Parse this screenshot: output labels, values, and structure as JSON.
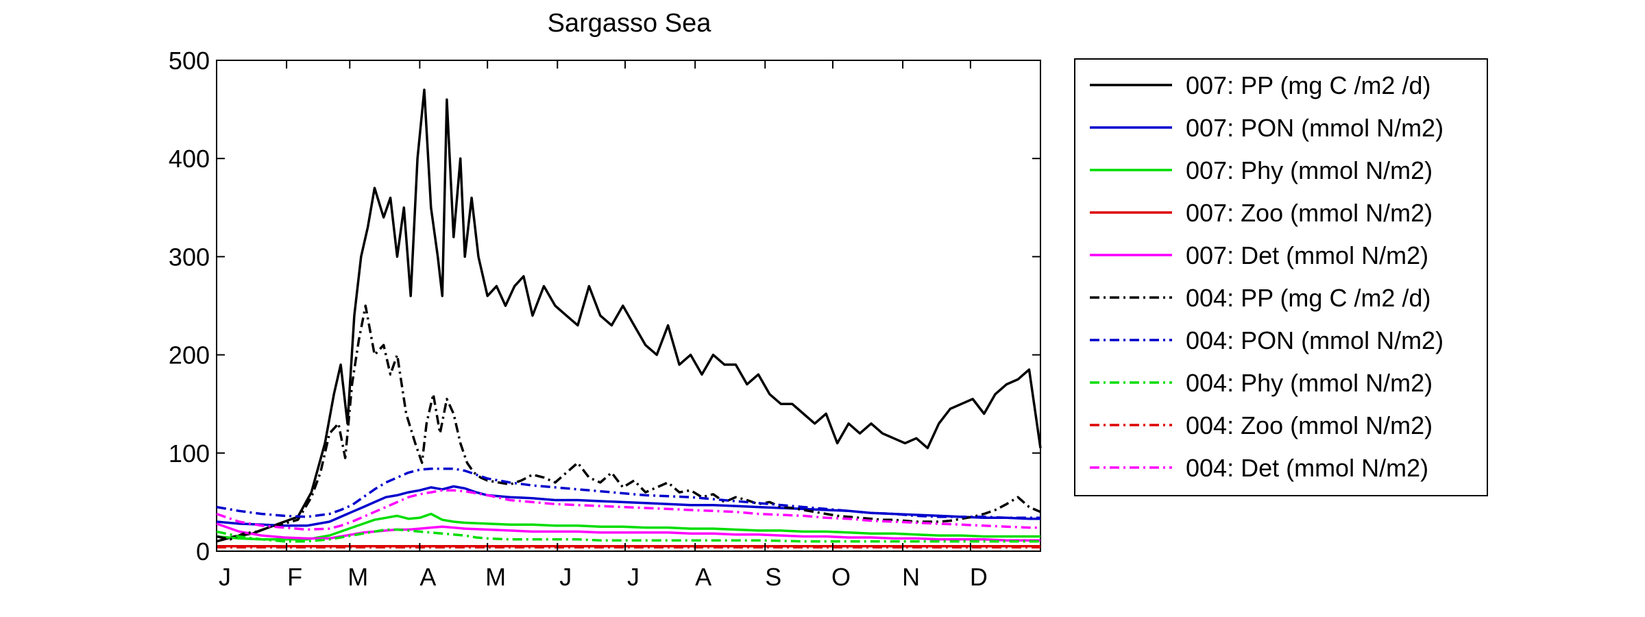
{
  "chart_data": {
    "type": "line",
    "title": "Sargasso Sea",
    "xlabel": "",
    "ylabel": "",
    "xlim": [
      0,
      365
    ],
    "ylim": [
      0,
      500
    ],
    "x_ticks": [
      {
        "day": 0,
        "label": "J"
      },
      {
        "day": 31,
        "label": "F"
      },
      {
        "day": 59,
        "label": "M"
      },
      {
        "day": 90,
        "label": "A"
      },
      {
        "day": 120,
        "label": "M"
      },
      {
        "day": 151,
        "label": "J"
      },
      {
        "day": 181,
        "label": "J"
      },
      {
        "day": 212,
        "label": "A"
      },
      {
        "day": 243,
        "label": "S"
      },
      {
        "day": 273,
        "label": "O"
      },
      {
        "day": 304,
        "label": "N"
      },
      {
        "day": 334,
        "label": "D"
      }
    ],
    "y_ticks": [
      0,
      100,
      200,
      300,
      400,
      500
    ],
    "grid": false,
    "legend_position": "outside-right",
    "series": [
      {
        "name": "007: PP (mg C /m2 /d)",
        "color": "#000000",
        "dash": "solid",
        "x": [
          0,
          8,
          16,
          24,
          30,
          36,
          42,
          48,
          52,
          55,
          58,
          61,
          64,
          67,
          70,
          74,
          77,
          80,
          83,
          86,
          89,
          92,
          95,
          98,
          100,
          102,
          105,
          108,
          110,
          113,
          116,
          120,
          124,
          128,
          132,
          136,
          140,
          145,
          150,
          155,
          160,
          165,
          170,
          175,
          180,
          185,
          190,
          195,
          200,
          205,
          210,
          215,
          220,
          225,
          230,
          235,
          240,
          245,
          250,
          255,
          260,
          265,
          270,
          275,
          280,
          285,
          290,
          295,
          300,
          305,
          310,
          315,
          320,
          325,
          330,
          335,
          340,
          345,
          350,
          355,
          360,
          365
        ],
        "y": [
          10,
          15,
          18,
          25,
          30,
          35,
          60,
          110,
          160,
          190,
          130,
          240,
          300,
          330,
          370,
          340,
          360,
          300,
          350,
          260,
          400,
          470,
          350,
          300,
          260,
          460,
          320,
          400,
          300,
          360,
          300,
          260,
          270,
          250,
          270,
          280,
          240,
          270,
          250,
          240,
          230,
          270,
          240,
          230,
          250,
          230,
          210,
          200,
          230,
          190,
          200,
          180,
          200,
          190,
          190,
          170,
          180,
          160,
          150,
          150,
          140,
          130,
          140,
          110,
          130,
          120,
          130,
          120,
          115,
          110,
          115,
          105,
          130,
          145,
          150,
          155,
          140,
          160,
          170,
          175,
          185,
          105
        ]
      },
      {
        "name": "007: PON (mmol N/m2)",
        "color": "#0000cc",
        "dash": "solid",
        "x": [
          0,
          10,
          20,
          30,
          40,
          50,
          55,
          60,
          65,
          70,
          75,
          80,
          85,
          90,
          95,
          100,
          105,
          110,
          115,
          120,
          130,
          140,
          150,
          160,
          170,
          180,
          190,
          200,
          210,
          220,
          230,
          240,
          250,
          260,
          270,
          280,
          290,
          300,
          310,
          320,
          330,
          340,
          350,
          360,
          365
        ],
        "y": [
          30,
          28,
          27,
          26,
          26,
          30,
          35,
          40,
          45,
          50,
          55,
          57,
          60,
          62,
          65,
          63,
          66,
          64,
          60,
          57,
          55,
          54,
          52,
          52,
          51,
          50,
          49,
          48,
          47,
          47,
          46,
          45,
          44,
          43,
          42,
          41,
          39,
          38,
          37,
          36,
          35,
          34,
          34,
          33,
          33
        ]
      },
      {
        "name": "007: Phy (mmol N/m2)",
        "color": "#00dd00",
        "dash": "solid",
        "x": [
          0,
          10,
          20,
          30,
          40,
          50,
          55,
          60,
          65,
          70,
          75,
          80,
          85,
          90,
          95,
          100,
          105,
          110,
          120,
          130,
          140,
          150,
          160,
          170,
          180,
          190,
          200,
          210,
          220,
          230,
          240,
          250,
          260,
          270,
          280,
          290,
          300,
          310,
          320,
          330,
          340,
          350,
          360,
          365
        ],
        "y": [
          15,
          13,
          12,
          12,
          12,
          16,
          20,
          24,
          28,
          32,
          34,
          36,
          33,
          34,
          38,
          32,
          30,
          29,
          28,
          27,
          27,
          26,
          26,
          25,
          25,
          24,
          24,
          23,
          23,
          22,
          21,
          21,
          20,
          20,
          19,
          18,
          18,
          17,
          16,
          16,
          15,
          15,
          15,
          15
        ]
      },
      {
        "name": "007: Zoo (mmol N/m2)",
        "color": "#dd0000",
        "dash": "solid",
        "x": [
          0,
          60,
          120,
          180,
          240,
          300,
          365
        ],
        "y": [
          5,
          5,
          5,
          5,
          5,
          5,
          5
        ]
      },
      {
        "name": "007: Det (mmol N/m2)",
        "color": "#ff00ff",
        "dash": "solid",
        "x": [
          0,
          10,
          20,
          30,
          40,
          50,
          55,
          60,
          65,
          70,
          75,
          80,
          85,
          90,
          95,
          100,
          105,
          110,
          120,
          130,
          140,
          150,
          160,
          170,
          180,
          190,
          200,
          210,
          220,
          230,
          240,
          250,
          260,
          270,
          280,
          290,
          300,
          310,
          320,
          330,
          340,
          350,
          360,
          365
        ],
        "y": [
          28,
          20,
          16,
          14,
          13,
          13,
          15,
          17,
          19,
          20,
          21,
          22,
          22,
          23,
          24,
          25,
          24,
          23,
          22,
          21,
          20,
          20,
          20,
          19,
          19,
          19,
          19,
          18,
          18,
          17,
          17,
          16,
          15,
          15,
          14,
          14,
          13,
          13,
          12,
          12,
          12,
          11,
          11,
          11
        ]
      },
      {
        "name": "004: PP (mg C /m2 /d)",
        "color": "#000000",
        "dash": "dashdot",
        "x": [
          0,
          6,
          12,
          18,
          24,
          30,
          36,
          42,
          46,
          50,
          54,
          57,
          60,
          63,
          66,
          70,
          74,
          77,
          80,
          84,
          88,
          91,
          93,
          96,
          99,
          102,
          105,
          108,
          111,
          114,
          117,
          120,
          125,
          130,
          135,
          140,
          145,
          150,
          155,
          160,
          165,
          170,
          175,
          180,
          185,
          190,
          195,
          200,
          205,
          210,
          215,
          220,
          225,
          230,
          235,
          240,
          245,
          250,
          255,
          260,
          265,
          270,
          275,
          280,
          285,
          290,
          295,
          300,
          305,
          310,
          315,
          320,
          325,
          330,
          335,
          340,
          345,
          350,
          355,
          360,
          365
        ],
        "y": [
          15,
          12,
          18,
          20,
          25,
          28,
          32,
          55,
          80,
          120,
          130,
          95,
          170,
          215,
          250,
          200,
          210,
          180,
          200,
          140,
          110,
          90,
          130,
          160,
          120,
          155,
          140,
          110,
          90,
          80,
          75,
          72,
          70,
          68,
          72,
          78,
          75,
          70,
          80,
          90,
          75,
          70,
          80,
          65,
          72,
          60,
          65,
          70,
          60,
          62,
          55,
          58,
          50,
          55,
          52,
          48,
          50,
          45,
          44,
          42,
          40,
          38,
          36,
          35,
          34,
          33,
          32,
          32,
          31,
          30,
          30,
          30,
          31,
          33,
          35,
          38,
          42,
          48,
          55,
          45,
          40
        ]
      },
      {
        "name": "004: PON (mmol N/m2)",
        "color": "#0000cc",
        "dash": "dashdot",
        "x": [
          0,
          10,
          20,
          30,
          40,
          50,
          55,
          60,
          65,
          70,
          75,
          80,
          85,
          90,
          95,
          100,
          105,
          110,
          115,
          120,
          130,
          140,
          150,
          160,
          170,
          180,
          190,
          200,
          210,
          220,
          230,
          240,
          250,
          260,
          270,
          280,
          290,
          300,
          310,
          320,
          330,
          340,
          350,
          360,
          365
        ],
        "y": [
          45,
          41,
          38,
          36,
          35,
          38,
          42,
          47,
          55,
          63,
          70,
          75,
          80,
          83,
          84,
          84,
          84,
          82,
          78,
          74,
          70,
          67,
          65,
          63,
          61,
          59,
          57,
          56,
          55,
          53,
          51,
          49,
          47,
          45,
          43,
          41,
          39,
          38,
          36,
          35,
          35,
          35,
          34,
          34,
          34
        ]
      },
      {
        "name": "004: Phy (mmol N/m2)",
        "color": "#00dd00",
        "dash": "dashdot",
        "x": [
          0,
          10,
          20,
          30,
          40,
          50,
          55,
          60,
          65,
          70,
          75,
          80,
          85,
          90,
          95,
          100,
          105,
          110,
          115,
          120,
          130,
          140,
          150,
          160,
          170,
          180,
          200,
          220,
          240,
          260,
          280,
          300,
          320,
          340,
          360,
          365
        ],
        "y": [
          20,
          15,
          12,
          10,
          10,
          12,
          14,
          16,
          18,
          20,
          22,
          22,
          21,
          20,
          19,
          18,
          17,
          16,
          14,
          13,
          12,
          12,
          12,
          12,
          11,
          11,
          11,
          11,
          11,
          10,
          10,
          10,
          10,
          10,
          10,
          10
        ]
      },
      {
        "name": "004: Zoo (mmol N/m2)",
        "color": "#dd0000",
        "dash": "dashdot",
        "x": [
          0,
          60,
          120,
          180,
          240,
          300,
          365
        ],
        "y": [
          4,
          4,
          4,
          4,
          4,
          4,
          4
        ]
      },
      {
        "name": "004: Det (mmol N/m2)",
        "color": "#ff00ff",
        "dash": "dashdot",
        "x": [
          0,
          10,
          20,
          30,
          40,
          50,
          55,
          60,
          65,
          70,
          75,
          80,
          85,
          90,
          95,
          100,
          105,
          110,
          115,
          120,
          130,
          140,
          150,
          160,
          170,
          180,
          190,
          200,
          210,
          220,
          230,
          240,
          250,
          260,
          270,
          280,
          290,
          300,
          310,
          320,
          330,
          340,
          350,
          360,
          365
        ],
        "y": [
          38,
          30,
          26,
          24,
          22,
          23,
          26,
          30,
          35,
          40,
          45,
          50,
          55,
          58,
          60,
          62,
          62,
          61,
          59,
          57,
          52,
          50,
          48,
          47,
          46,
          45,
          44,
          43,
          42,
          41,
          40,
          38,
          37,
          36,
          34,
          33,
          31,
          30,
          29,
          28,
          27,
          26,
          25,
          24,
          24
        ]
      }
    ]
  }
}
